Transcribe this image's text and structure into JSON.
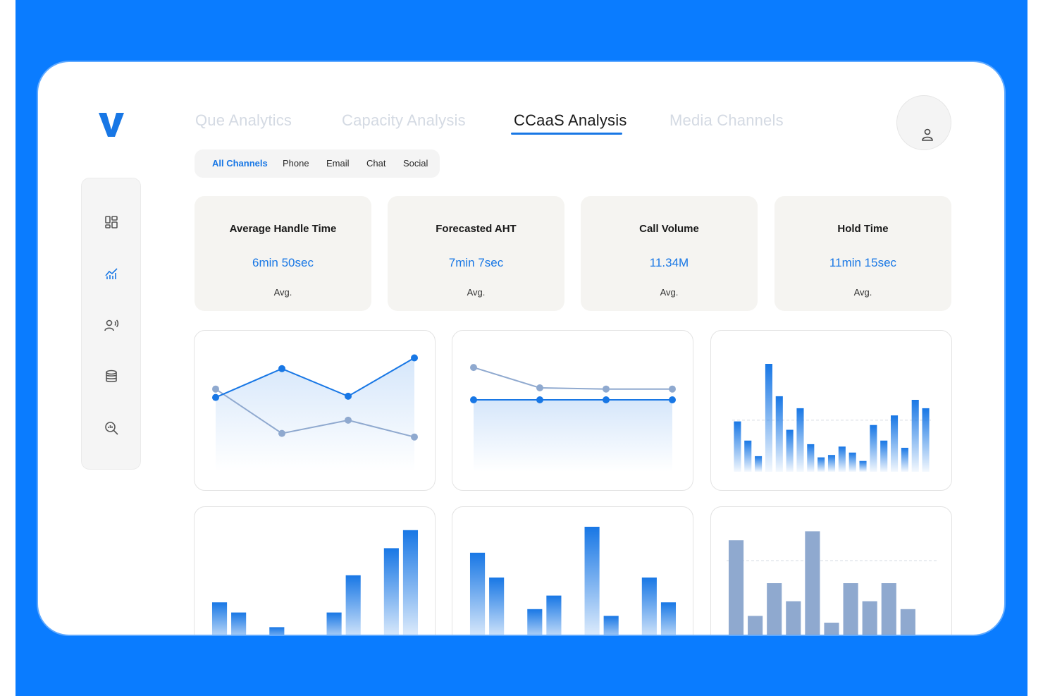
{
  "brand": {
    "logo_letter": "V",
    "accent": "#1877e5",
    "background": "#0a7cff"
  },
  "tabs": [
    {
      "label": "Que Analytics",
      "active": false
    },
    {
      "label": "Capacity Analysis",
      "active": false
    },
    {
      "label": "CCaaS Analysis",
      "active": true
    },
    {
      "label": "Media Channels",
      "active": false
    }
  ],
  "sidebar": {
    "items": [
      {
        "icon": "dashboard-icon",
        "active": false
      },
      {
        "icon": "analytics-chart-icon",
        "active": true
      },
      {
        "icon": "agent-voice-icon",
        "active": false
      },
      {
        "icon": "database-icon",
        "active": false
      },
      {
        "icon": "search-analytics-icon",
        "active": false
      }
    ]
  },
  "channels": {
    "options": [
      "All Channels",
      "Phone",
      "Email",
      "Chat",
      "Social"
    ],
    "selected": "All Channels"
  },
  "user": {
    "icon": "user-icon"
  },
  "kpis": [
    {
      "title": "Average Handle Time",
      "value": "6min 50sec",
      "sub": "Avg."
    },
    {
      "title": "Forecasted AHT",
      "value": "7min 7sec",
      "sub": "Avg."
    },
    {
      "title": "Call Volume",
      "value": "11.34M",
      "sub": "Avg."
    },
    {
      "title": "Hold Time",
      "value": "11min 15sec",
      "sub": "Avg."
    }
  ],
  "chart_data": [
    {
      "type": "line",
      "x": [
        1,
        2,
        3,
        4
      ],
      "ylim": [
        0,
        100
      ],
      "series": [
        {
          "values": [
            62,
            86,
            63,
            95
          ],
          "color": "#1877e5",
          "filled": true
        },
        {
          "values": [
            69,
            32,
            43,
            29
          ],
          "color": "#8fa9cf",
          "filled": false
        }
      ]
    },
    {
      "type": "line",
      "x": [
        1,
        2,
        3,
        4
      ],
      "ylim": [
        0,
        100
      ],
      "series": [
        {
          "values": [
            60,
            60,
            60,
            60
          ],
          "color": "#1877e5",
          "filled": true
        },
        {
          "values": [
            87,
            70,
            69,
            69
          ],
          "color": "#8fa9cf",
          "filled": false
        }
      ]
    },
    {
      "type": "bar",
      "categories": [
        "1",
        "2",
        "3",
        "4",
        "5",
        "6",
        "7",
        "8",
        "9",
        "10",
        "11",
        "12",
        "13",
        "14",
        "15",
        "16",
        "17",
        "18",
        "19"
      ],
      "values": [
        42,
        26,
        13,
        90,
        63,
        35,
        53,
        23,
        12,
        14,
        21,
        16,
        9,
        39,
        26,
        47,
        20,
        60,
        53
      ],
      "ylim": [
        0,
        100
      ],
      "color": "#1877e5",
      "reference_line": 43
    },
    {
      "type": "bar",
      "categories": [
        "1",
        "2",
        "3",
        "4",
        "5",
        "6",
        "7",
        "8",
        "9",
        "10",
        "11"
      ],
      "values": [
        28,
        19,
        0,
        6,
        0,
        0,
        19,
        52,
        0,
        76,
        92
      ],
      "ylim": [
        0,
        100
      ],
      "color": "#1877e5"
    },
    {
      "type": "bar",
      "categories": [
        "1",
        "2",
        "3",
        "4",
        "5",
        "6",
        "7",
        "8",
        "9",
        "10",
        "11"
      ],
      "values": [
        72,
        50,
        0,
        22,
        34,
        0,
        95,
        16,
        0,
        50,
        28
      ],
      "ylim": [
        0,
        100
      ],
      "color": "#1877e5"
    },
    {
      "type": "bar",
      "categories": [
        "1",
        "2",
        "3",
        "4",
        "5",
        "6",
        "7",
        "8",
        "9",
        "10",
        "11"
      ],
      "values": [
        83,
        16,
        45,
        29,
        91,
        10,
        45,
        29,
        45,
        22,
        0
      ],
      "ylim": [
        0,
        100
      ],
      "color": "#8fa9cf",
      "reference_line": 65
    }
  ]
}
